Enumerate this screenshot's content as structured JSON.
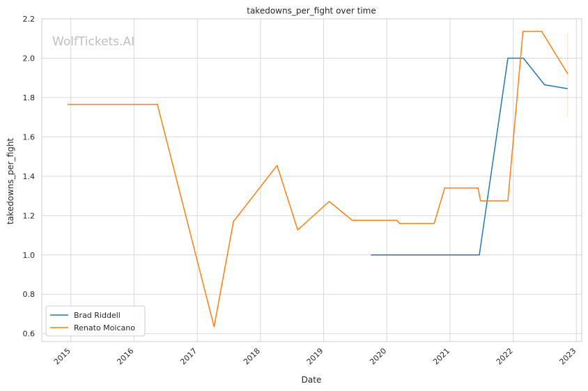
{
  "watermark": "WolfTickets.AI",
  "chart_data": {
    "type": "line",
    "title": "takedowns_per_fight over time",
    "xlabel": "Date",
    "ylabel": "takedowns_per_fight",
    "xlim": [
      "2014-07-17",
      "2023-02-01"
    ],
    "ylim": [
      0.56,
      2.2
    ],
    "x_ticks": [
      "2015",
      "2016",
      "2017",
      "2018",
      "2019",
      "2020",
      "2021",
      "2022",
      "2023"
    ],
    "y_ticks": [
      "0.6",
      "0.8",
      "1.0",
      "1.2",
      "1.4",
      "1.6",
      "1.8",
      "2.0",
      "2.2"
    ],
    "grid": true,
    "legend_position": "lower-left",
    "series": [
      {
        "name": "Brad Riddell",
        "color": "#1f77b4",
        "points": [
          [
            "2019-10-01",
            1.0
          ],
          [
            "2021-06-19",
            1.0
          ],
          [
            "2021-12-01",
            2.0
          ],
          [
            "2022-03-01",
            2.0
          ],
          [
            "2022-07-01",
            1.865
          ],
          [
            "2022-11-12",
            1.845
          ]
        ]
      },
      {
        "name": "Renato Moicano",
        "color": "#ff7f0e",
        "points": [
          [
            "2014-12-13",
            1.765
          ],
          [
            "2016-05-15",
            1.765
          ],
          [
            "2017-04-08",
            0.635
          ],
          [
            "2017-07-29",
            1.17
          ],
          [
            "2018-04-07",
            1.455
          ],
          [
            "2018-08-04",
            1.127
          ],
          [
            "2019-02-02",
            1.272
          ],
          [
            "2019-06-15",
            1.176
          ],
          [
            "2020-03-01",
            1.176
          ],
          [
            "2020-03-14",
            1.16
          ],
          [
            "2020-10-01",
            1.16
          ],
          [
            "2020-12-01",
            1.34
          ],
          [
            "2021-06-12",
            1.34
          ],
          [
            "2021-06-26",
            1.275
          ],
          [
            "2021-12-01",
            1.275
          ],
          [
            "2022-02-26",
            2.136
          ],
          [
            "2022-06-15",
            2.136
          ],
          [
            "2022-11-12",
            1.92
          ]
        ]
      }
    ]
  }
}
